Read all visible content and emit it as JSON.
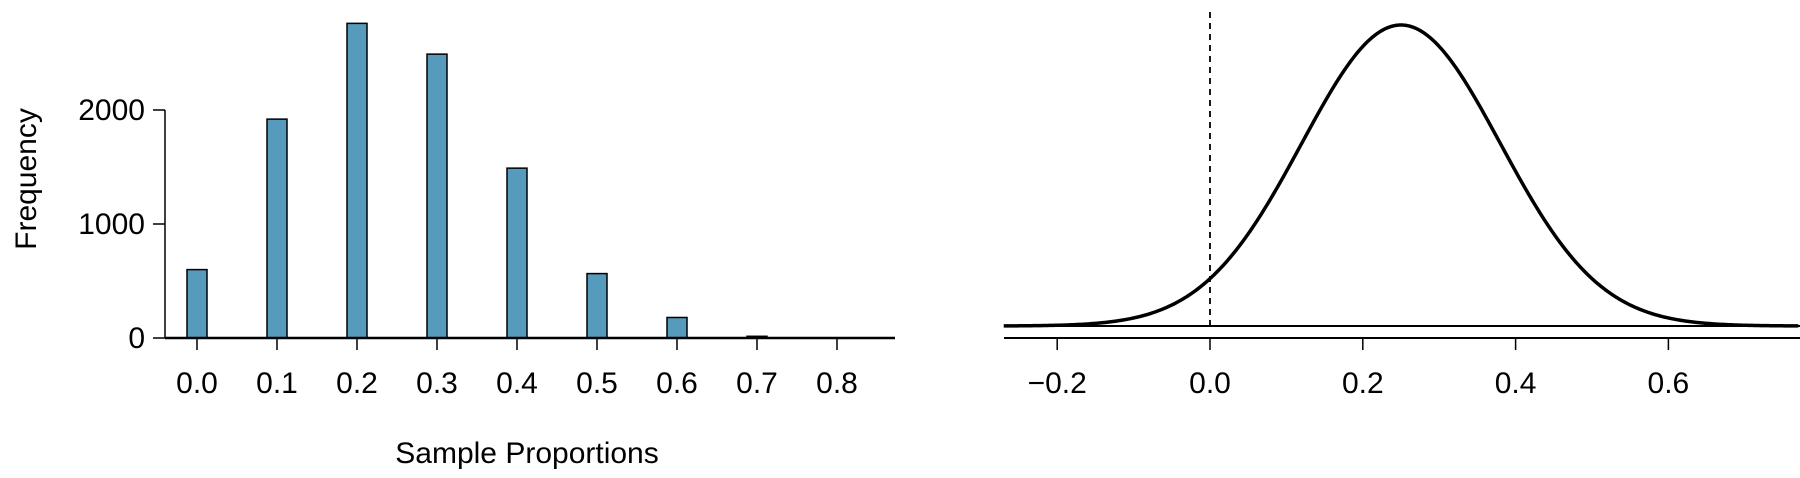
{
  "colors": {
    "bar_fill": "#569BBD",
    "bar_stroke": "#000000",
    "curve": "#000000"
  },
  "chart_data": [
    {
      "type": "bar",
      "xlabel": "Sample Proportions",
      "ylabel": "Frequency",
      "x": [
        0.0,
        0.1,
        0.2,
        0.3,
        0.4,
        0.5,
        0.6,
        0.7,
        0.8
      ],
      "values": [
        600,
        1920,
        2760,
        2490,
        1490,
        565,
        180,
        15,
        2
      ],
      "x_ticks": [
        "0.0",
        "0.1",
        "0.2",
        "0.3",
        "0.4",
        "0.5",
        "0.6",
        "0.7",
        "0.8"
      ],
      "y_ticks": [
        "0",
        "1000",
        "2000"
      ],
      "xlim": [
        -0.04,
        0.87
      ],
      "ylim": [
        0,
        2800
      ],
      "grid": false
    },
    {
      "type": "line",
      "distribution": "normal",
      "mean": 0.25,
      "sd": 0.13,
      "reference_line_x": 0.0,
      "reference_line_style": "dashed",
      "x_ticks": [
        "−0.2",
        "0.0",
        "0.2",
        "0.4",
        "0.6"
      ],
      "x_tick_values": [
        -0.2,
        0.0,
        0.2,
        0.4,
        0.6
      ],
      "xlim": [
        -0.27,
        0.77
      ],
      "grid": false
    }
  ]
}
